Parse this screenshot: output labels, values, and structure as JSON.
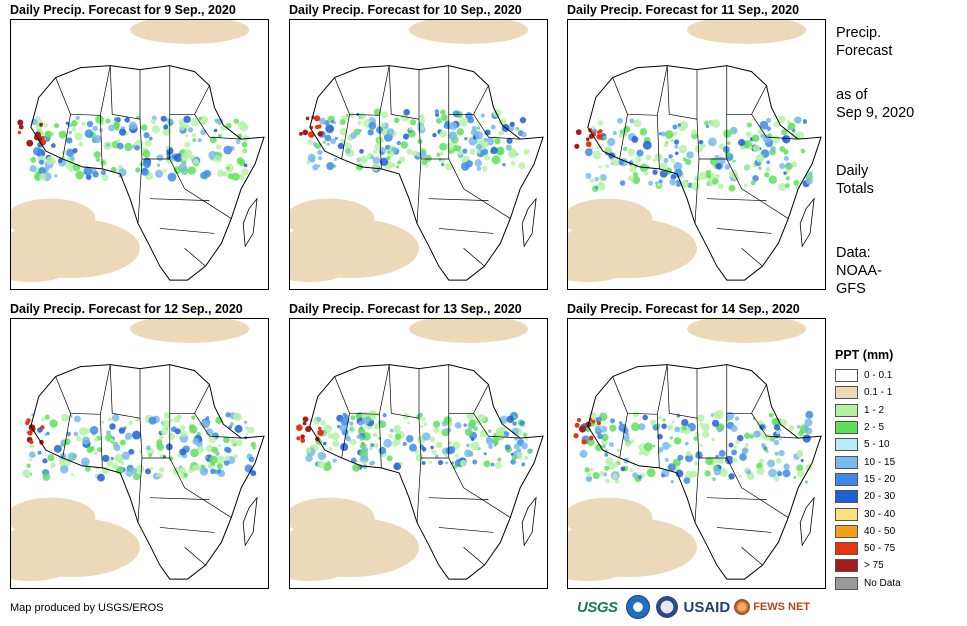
{
  "panels": [
    {
      "title": "Daily Precip. Forecast for 9 Sep., 2020"
    },
    {
      "title": "Daily Precip. Forecast for 10 Sep., 2020"
    },
    {
      "title": "Daily Precip. Forecast for 11 Sep., 2020"
    },
    {
      "title": "Daily Precip. Forecast for 12 Sep., 2020"
    },
    {
      "title": "Daily Precip. Forecast for 13 Sep., 2020"
    },
    {
      "title": "Daily Precip. Forecast for 14 Sep., 2020"
    }
  ],
  "side": {
    "title_line1": "Precip.",
    "title_line2": "Forecast",
    "asof_line1": "as of",
    "asof_line2": "Sep 9, 2020",
    "totals_line1": "Daily",
    "totals_line2": "Totals",
    "data_line1": "Data:",
    "data_line2": "NOAA-",
    "data_line3": "GFS"
  },
  "legend": {
    "title": "PPT (mm)",
    "items": [
      {
        "label": "0 - 0.1",
        "color": "#ffffff"
      },
      {
        "label": "0.1 - 1",
        "color": "#ecd9b9"
      },
      {
        "label": "1 - 2",
        "color": "#b5f2a5"
      },
      {
        "label": "2 - 5",
        "color": "#5fe05a"
      },
      {
        "label": "5 - 10",
        "color": "#b8ecf4"
      },
      {
        "label": "10 - 15",
        "color": "#7ab9ec"
      },
      {
        "label": "15 - 20",
        "color": "#3d8ae8"
      },
      {
        "label": "20 - 30",
        "color": "#1f5fd8"
      },
      {
        "label": "30 - 40",
        "color": "#fbe17a"
      },
      {
        "label": "40 - 50",
        "color": "#f59f1a"
      },
      {
        "label": "50 - 75",
        "color": "#e8340e"
      },
      {
        "label": "> 75",
        "color": "#a31c1c"
      },
      {
        "label": "No Data",
        "color": "#9a9a9a"
      }
    ]
  },
  "footer": {
    "credit": "Map produced by USGS/EROS",
    "logo_usgs": "USGS",
    "logo_usaid": "USAID",
    "logo_fews": "FEWS NET"
  }
}
